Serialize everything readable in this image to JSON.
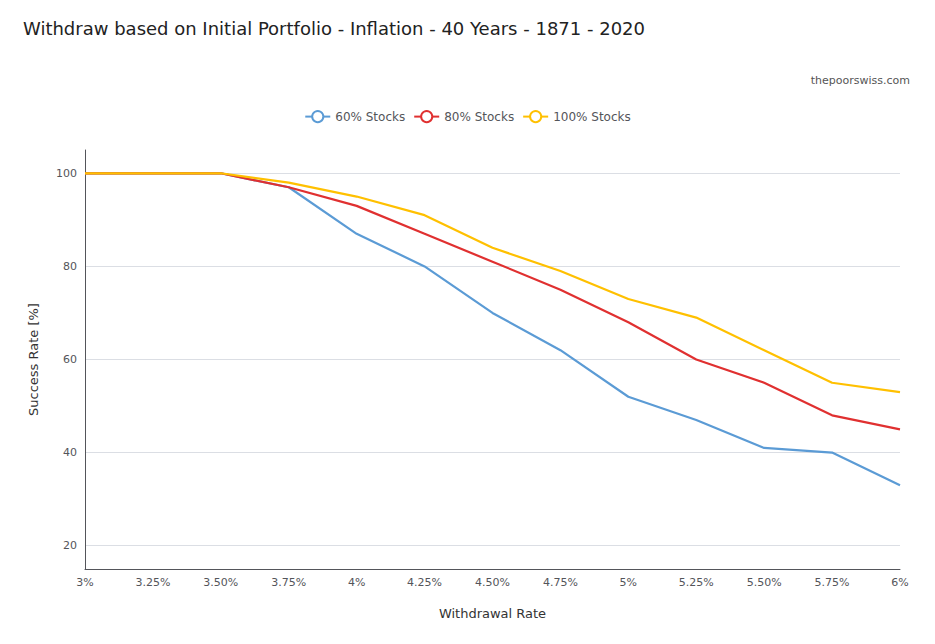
{
  "chart_data": {
    "type": "line",
    "title": "Withdraw based on Initial Portfolio - Inflation - 40 Years - 1871 - 2020",
    "annotations": [
      "thepoorswiss.com"
    ],
    "xlabel": "Withdrawal Rate",
    "ylabel": "Success Rate [%]",
    "categories": [
      "3%",
      "3.25%",
      "3.50%",
      "3.75%",
      "4%",
      "4.25%",
      "4.50%",
      "4.75%",
      "5%",
      "5.25%",
      "5.50%",
      "5.75%",
      "6%"
    ],
    "series": [
      {
        "name": "60% Stocks",
        "color": "#5b9bd5",
        "values": [
          100,
          100,
          100,
          97,
          87,
          80,
          70,
          62,
          52,
          47,
          41,
          40,
          33
        ]
      },
      {
        "name": "80% Stocks",
        "color": "#e03030",
        "values": [
          100,
          100,
          100,
          97,
          93,
          87,
          81,
          75,
          68,
          60,
          55,
          48,
          45
        ]
      },
      {
        "name": "100% Stocks",
        "color": "#ffc000",
        "values": [
          100,
          100,
          100,
          98,
          95,
          91,
          84,
          79,
          73,
          69,
          62,
          55,
          53
        ]
      }
    ],
    "ylim": [
      15,
      105
    ],
    "yticks": [
      20,
      40,
      60,
      80,
      100
    ],
    "grid": true,
    "legend": "top"
  }
}
